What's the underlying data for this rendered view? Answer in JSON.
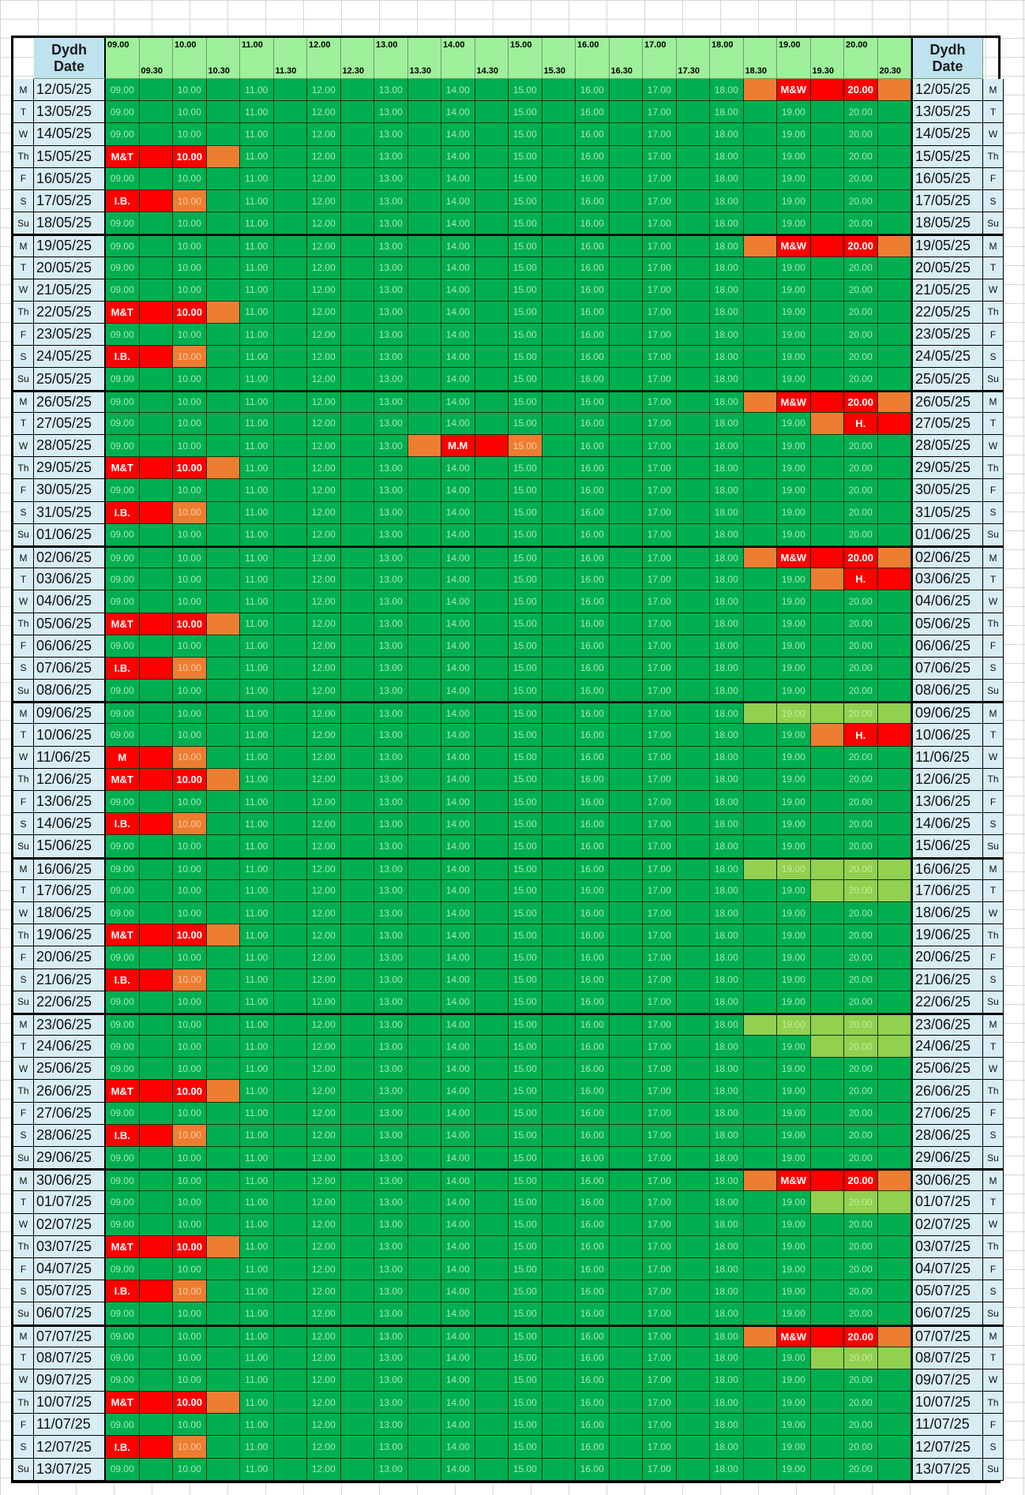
{
  "header": {
    "date_label_welsh": "Dydh",
    "date_label_en": "Date",
    "hours": [
      "09.00",
      "10.00",
      "11.00",
      "12.00",
      "13.00",
      "14.00",
      "15.00",
      "16.00",
      "17.00",
      "18.00",
      "19.00",
      "20.00"
    ],
    "halves": [
      "09.30",
      "10.30",
      "11.30",
      "12.30",
      "13.30",
      "14.30",
      "15.30",
      "16.30",
      "17.30",
      "18.30",
      "19.30",
      "20.30"
    ]
  },
  "slot_labels": [
    "09.00",
    "",
    "10.00",
    "",
    "11.00",
    "",
    "12.00",
    "",
    "13.00",
    "",
    "14.00",
    "",
    "15.00",
    "",
    "16.00",
    "",
    "17.00",
    "",
    "18.00",
    "",
    "19.00",
    "",
    "20.00",
    ""
  ],
  "colors": {
    "free": "#00b050",
    "booked": "#ff0000",
    "buffer": "#ed7d31",
    "tentative": "#92d050",
    "header_green": "#9ff09a",
    "header_blue": "#bfe2ef"
  },
  "rows": [
    {
      "day": "M",
      "date": "12/05/25",
      "ev": [
        [
          19,
          "orange",
          ""
        ],
        [
          20,
          "red",
          "M&W"
        ],
        [
          21,
          "red",
          ""
        ],
        [
          22,
          "red",
          "20.00"
        ],
        [
          23,
          "orange",
          ""
        ]
      ]
    },
    {
      "day": "T",
      "date": "13/05/25",
      "ev": []
    },
    {
      "day": "W",
      "date": "14/05/25",
      "ev": []
    },
    {
      "day": "Th",
      "date": "15/05/25",
      "ev": [
        [
          0,
          "red",
          "M&T"
        ],
        [
          1,
          "red",
          ""
        ],
        [
          2,
          "red",
          "10.00"
        ],
        [
          3,
          "orange",
          ""
        ]
      ]
    },
    {
      "day": "F",
      "date": "16/05/25",
      "ev": []
    },
    {
      "day": "S",
      "date": "17/05/25",
      "ev": [
        [
          0,
          "red",
          "I.B."
        ],
        [
          1,
          "red",
          ""
        ],
        [
          2,
          "orange",
          "10.00"
        ]
      ]
    },
    {
      "day": "Su",
      "date": "18/05/25",
      "ev": []
    },
    {
      "day": "M",
      "date": "19/05/25",
      "ev": [
        [
          19,
          "orange",
          ""
        ],
        [
          20,
          "red",
          "M&W"
        ],
        [
          21,
          "red",
          ""
        ],
        [
          22,
          "red",
          "20.00"
        ],
        [
          23,
          "orange",
          ""
        ]
      ]
    },
    {
      "day": "T",
      "date": "20/05/25",
      "ev": []
    },
    {
      "day": "W",
      "date": "21/05/25",
      "ev": []
    },
    {
      "day": "Th",
      "date": "22/05/25",
      "ev": [
        [
          0,
          "red",
          "M&T"
        ],
        [
          1,
          "red",
          ""
        ],
        [
          2,
          "red",
          "10.00"
        ],
        [
          3,
          "orange",
          ""
        ]
      ]
    },
    {
      "day": "F",
      "date": "23/05/25",
      "ev": []
    },
    {
      "day": "S",
      "date": "24/05/25",
      "ev": [
        [
          0,
          "red",
          "I.B."
        ],
        [
          1,
          "red",
          ""
        ],
        [
          2,
          "orange",
          "10.00"
        ]
      ]
    },
    {
      "day": "Su",
      "date": "25/05/25",
      "ev": []
    },
    {
      "day": "M",
      "date": "26/05/25",
      "ev": [
        [
          19,
          "orange",
          ""
        ],
        [
          20,
          "red",
          "M&W"
        ],
        [
          21,
          "red",
          ""
        ],
        [
          22,
          "red",
          "20.00"
        ],
        [
          23,
          "orange",
          ""
        ]
      ]
    },
    {
      "day": "T",
      "date": "27/05/25",
      "ev": [
        [
          21,
          "orange",
          ""
        ],
        [
          22,
          "red",
          "H."
        ],
        [
          23,
          "red",
          ""
        ]
      ]
    },
    {
      "day": "W",
      "date": "28/05/25",
      "ev": [
        [
          9,
          "orange",
          ""
        ],
        [
          10,
          "red",
          "M.M"
        ],
        [
          11,
          "red",
          ""
        ],
        [
          12,
          "orange",
          "15.00"
        ]
      ]
    },
    {
      "day": "Th",
      "date": "29/05/25",
      "ev": [
        [
          0,
          "red",
          "M&T"
        ],
        [
          1,
          "red",
          ""
        ],
        [
          2,
          "red",
          "10.00"
        ],
        [
          3,
          "orange",
          ""
        ]
      ]
    },
    {
      "day": "F",
      "date": "30/05/25",
      "ev": []
    },
    {
      "day": "S",
      "date": "31/05/25",
      "ev": [
        [
          0,
          "red",
          "I.B."
        ],
        [
          1,
          "red",
          ""
        ],
        [
          2,
          "orange",
          "10.00"
        ]
      ]
    },
    {
      "day": "Su",
      "date": "01/06/25",
      "ev": []
    },
    {
      "day": "M",
      "date": "02/06/25",
      "ev": [
        [
          19,
          "orange",
          ""
        ],
        [
          20,
          "red",
          "M&W"
        ],
        [
          21,
          "red",
          ""
        ],
        [
          22,
          "red",
          "20.00"
        ],
        [
          23,
          "orange",
          ""
        ]
      ]
    },
    {
      "day": "T",
      "date": "03/06/25",
      "ev": [
        [
          21,
          "orange",
          ""
        ],
        [
          22,
          "red",
          "H."
        ],
        [
          23,
          "red",
          ""
        ]
      ]
    },
    {
      "day": "W",
      "date": "04/06/25",
      "ev": []
    },
    {
      "day": "Th",
      "date": "05/06/25",
      "ev": [
        [
          0,
          "red",
          "M&T"
        ],
        [
          1,
          "red",
          ""
        ],
        [
          2,
          "red",
          "10.00"
        ],
        [
          3,
          "orange",
          ""
        ]
      ]
    },
    {
      "day": "F",
      "date": "06/06/25",
      "ev": []
    },
    {
      "day": "S",
      "date": "07/06/25",
      "ev": [
        [
          0,
          "red",
          "I.B."
        ],
        [
          1,
          "red",
          ""
        ],
        [
          2,
          "orange",
          "10.00"
        ]
      ]
    },
    {
      "day": "Su",
      "date": "08/06/25",
      "ev": []
    },
    {
      "day": "M",
      "date": "09/06/25",
      "ev": [
        [
          19,
          "lime",
          ""
        ],
        [
          20,
          "lime",
          "19.00"
        ],
        [
          21,
          "lime",
          ""
        ],
        [
          22,
          "lime",
          "20.00"
        ],
        [
          23,
          "lime",
          ""
        ]
      ]
    },
    {
      "day": "T",
      "date": "10/06/25",
      "ev": [
        [
          21,
          "orange",
          ""
        ],
        [
          22,
          "red",
          "H."
        ],
        [
          23,
          "red",
          ""
        ]
      ]
    },
    {
      "day": "W",
      "date": "11/06/25",
      "ev": [
        [
          0,
          "red",
          "M"
        ],
        [
          1,
          "red",
          ""
        ],
        [
          2,
          "orange",
          "10.00"
        ]
      ]
    },
    {
      "day": "Th",
      "date": "12/06/25",
      "ev": [
        [
          0,
          "red",
          "M&T"
        ],
        [
          1,
          "red",
          ""
        ],
        [
          2,
          "red",
          "10.00"
        ],
        [
          3,
          "orange",
          ""
        ]
      ]
    },
    {
      "day": "F",
      "date": "13/06/25",
      "ev": []
    },
    {
      "day": "S",
      "date": "14/06/25",
      "ev": [
        [
          0,
          "red",
          "I.B."
        ],
        [
          1,
          "red",
          ""
        ],
        [
          2,
          "orange",
          "10.00"
        ]
      ]
    },
    {
      "day": "Su",
      "date": "15/06/25",
      "ev": []
    },
    {
      "day": "M",
      "date": "16/06/25",
      "ev": [
        [
          19,
          "lime",
          ""
        ],
        [
          20,
          "lime",
          "19.00"
        ],
        [
          21,
          "lime",
          ""
        ],
        [
          22,
          "lime",
          "20.00"
        ],
        [
          23,
          "lime",
          ""
        ]
      ]
    },
    {
      "day": "T",
      "date": "17/06/25",
      "ev": [
        [
          21,
          "lime",
          ""
        ],
        [
          22,
          "lime",
          "20.00"
        ],
        [
          23,
          "lime",
          ""
        ]
      ]
    },
    {
      "day": "W",
      "date": "18/06/25",
      "ev": []
    },
    {
      "day": "Th",
      "date": "19/06/25",
      "ev": [
        [
          0,
          "red",
          "M&T"
        ],
        [
          1,
          "red",
          ""
        ],
        [
          2,
          "red",
          "10.00"
        ],
        [
          3,
          "orange",
          ""
        ]
      ]
    },
    {
      "day": "F",
      "date": "20/06/25",
      "ev": []
    },
    {
      "day": "S",
      "date": "21/06/25",
      "ev": [
        [
          0,
          "red",
          "I.B."
        ],
        [
          1,
          "red",
          ""
        ],
        [
          2,
          "orange",
          "10.00"
        ]
      ]
    },
    {
      "day": "Su",
      "date": "22/06/25",
      "ev": []
    },
    {
      "day": "M",
      "date": "23/06/25",
      "ev": [
        [
          19,
          "lime",
          ""
        ],
        [
          20,
          "lime",
          "19.00"
        ],
        [
          21,
          "lime",
          ""
        ],
        [
          22,
          "lime",
          "20.00"
        ],
        [
          23,
          "lime",
          ""
        ]
      ]
    },
    {
      "day": "T",
      "date": "24/06/25",
      "ev": [
        [
          21,
          "lime",
          ""
        ],
        [
          22,
          "lime",
          "20.00"
        ],
        [
          23,
          "lime",
          ""
        ]
      ]
    },
    {
      "day": "W",
      "date": "25/06/25",
      "ev": []
    },
    {
      "day": "Th",
      "date": "26/06/25",
      "ev": [
        [
          0,
          "red",
          "M&T"
        ],
        [
          1,
          "red",
          ""
        ],
        [
          2,
          "red",
          "10.00"
        ],
        [
          3,
          "orange",
          ""
        ]
      ]
    },
    {
      "day": "F",
      "date": "27/06/25",
      "ev": []
    },
    {
      "day": "S",
      "date": "28/06/25",
      "ev": [
        [
          0,
          "red",
          "I.B."
        ],
        [
          1,
          "red",
          ""
        ],
        [
          2,
          "orange",
          "10.00"
        ]
      ]
    },
    {
      "day": "Su",
      "date": "29/06/25",
      "ev": []
    },
    {
      "day": "M",
      "date": "30/06/25",
      "ev": [
        [
          19,
          "orange",
          ""
        ],
        [
          20,
          "red",
          "M&W"
        ],
        [
          21,
          "red",
          ""
        ],
        [
          22,
          "red",
          "20.00"
        ],
        [
          23,
          "orange",
          ""
        ]
      ]
    },
    {
      "day": "T",
      "date": "01/07/25",
      "ev": [
        [
          21,
          "lime",
          ""
        ],
        [
          22,
          "lime",
          "20.00"
        ],
        [
          23,
          "lime",
          ""
        ]
      ]
    },
    {
      "day": "W",
      "date": "02/07/25",
      "ev": []
    },
    {
      "day": "Th",
      "date": "03/07/25",
      "ev": [
        [
          0,
          "red",
          "M&T"
        ],
        [
          1,
          "red",
          ""
        ],
        [
          2,
          "red",
          "10.00"
        ],
        [
          3,
          "orange",
          ""
        ]
      ]
    },
    {
      "day": "F",
      "date": "04/07/25",
      "ev": []
    },
    {
      "day": "S",
      "date": "05/07/25",
      "ev": [
        [
          0,
          "red",
          "I.B."
        ],
        [
          1,
          "red",
          ""
        ],
        [
          2,
          "orange",
          "10.00"
        ]
      ]
    },
    {
      "day": "Su",
      "date": "06/07/25",
      "ev": []
    },
    {
      "day": "M",
      "date": "07/07/25",
      "ev": [
        [
          19,
          "orange",
          ""
        ],
        [
          20,
          "red",
          "M&W"
        ],
        [
          21,
          "red",
          ""
        ],
        [
          22,
          "red",
          "20.00"
        ],
        [
          23,
          "orange",
          ""
        ]
      ]
    },
    {
      "day": "T",
      "date": "08/07/25",
      "ev": [
        [
          21,
          "lime",
          ""
        ],
        [
          22,
          "lime",
          "20.00"
        ],
        [
          23,
          "lime",
          ""
        ]
      ]
    },
    {
      "day": "W",
      "date": "09/07/25",
      "ev": []
    },
    {
      "day": "Th",
      "date": "10/07/25",
      "ev": [
        [
          0,
          "red",
          "M&T"
        ],
        [
          1,
          "red",
          ""
        ],
        [
          2,
          "red",
          "10.00"
        ],
        [
          3,
          "orange",
          ""
        ]
      ]
    },
    {
      "day": "F",
      "date": "11/07/25",
      "ev": []
    },
    {
      "day": "S",
      "date": "12/07/25",
      "ev": [
        [
          0,
          "red",
          "I.B."
        ],
        [
          1,
          "red",
          ""
        ],
        [
          2,
          "orange",
          "10.00"
        ]
      ]
    },
    {
      "day": "Su",
      "date": "13/07/25",
      "ev": []
    }
  ]
}
